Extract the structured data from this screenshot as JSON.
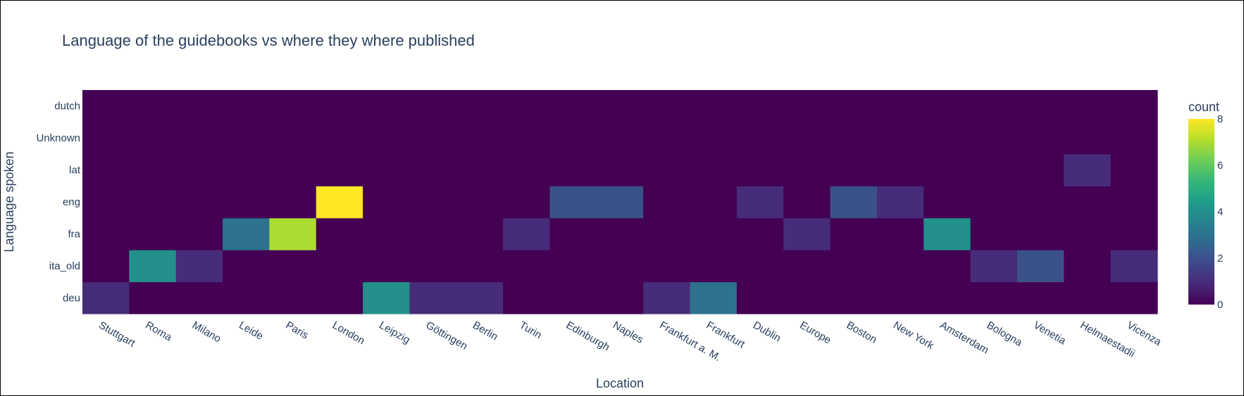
{
  "chart_data": {
    "type": "heatmap",
    "title": "Language of the guidebooks  vs where they where published",
    "xlabel": "Location",
    "ylabel": "Language spoken",
    "x": [
      "Stuttgart",
      "Roma",
      "Milano",
      "Leide",
      "Paris",
      "London",
      "Leipzig",
      "Göttingen",
      "Berlin",
      "Turin",
      "Edinburgh",
      "Naples",
      "Frankfurt a. M.",
      "Frankfurt",
      "Dublin",
      "Europe",
      "Boston",
      "New York",
      "Amsterdam",
      "Bologna",
      "Venetia",
      "Helmaestadii",
      "Vicenza"
    ],
    "y": [
      "deu",
      "ita_old",
      "fra",
      "eng",
      "lat",
      "Unknown",
      "dutch"
    ],
    "z": [
      [
        1,
        0,
        0,
        0,
        0,
        0,
        4,
        1,
        1,
        0,
        0,
        0,
        1,
        3,
        0,
        0,
        0,
        0,
        0,
        0,
        0,
        0,
        0
      ],
      [
        0,
        4,
        1,
        0,
        0,
        0,
        0,
        0,
        0,
        0,
        0,
        0,
        0,
        0,
        0,
        0,
        0,
        0,
        0,
        1,
        2,
        0,
        1
      ],
      [
        0,
        0,
        0,
        3,
        7,
        0,
        0,
        0,
        0,
        1,
        0,
        0,
        0,
        0,
        0,
        1,
        0,
        0,
        4,
        0,
        0,
        0,
        0
      ],
      [
        0,
        0,
        0,
        0,
        0,
        8,
        0,
        0,
        0,
        0,
        2,
        2,
        0,
        0,
        1,
        0,
        2,
        1,
        0,
        0,
        0,
        0,
        0
      ],
      [
        0,
        0,
        0,
        0,
        0,
        0,
        0,
        0,
        0,
        0,
        0,
        0,
        0,
        0,
        0,
        0,
        0,
        0,
        0,
        0,
        0,
        1,
        0
      ],
      [
        0,
        0,
        0,
        0,
        0,
        0,
        0,
        0,
        0,
        0,
        0,
        0,
        0,
        0,
        0,
        0,
        0,
        0,
        0,
        0,
        0,
        0,
        0
      ],
      [
        0,
        0,
        0,
        0,
        0,
        0,
        0,
        0,
        0,
        0,
        0,
        0,
        0,
        0,
        0,
        0,
        0,
        0,
        0,
        0,
        0,
        0,
        0
      ]
    ],
    "zlim": [
      0,
      8
    ],
    "colorscale": "Viridis",
    "colorscale_stops": [
      "#440154",
      "#482878",
      "#3e4989",
      "#31688e",
      "#26828e",
      "#1f9e89",
      "#35b779",
      "#6ece58",
      "#b5de2b",
      "#fde725"
    ],
    "colorbar": {
      "title": "count",
      "ticks": [
        0,
        2,
        4,
        6,
        8
      ]
    }
  }
}
